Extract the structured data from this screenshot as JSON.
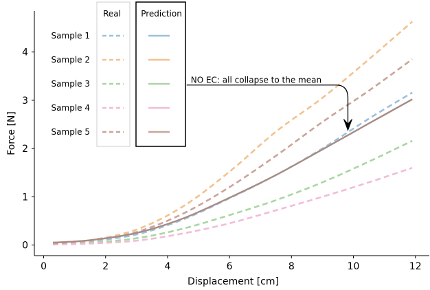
{
  "chart_data": {
    "type": "line",
    "xlabel": "Displacement [cm]",
    "ylabel": "Force [N]",
    "xlim": [
      -0.3,
      12.45
    ],
    "ylim": [
      -0.22,
      4.85
    ],
    "xticks": [
      0,
      2,
      4,
      6,
      8,
      10,
      12
    ],
    "yticks": [
      0,
      1,
      2,
      3,
      4
    ],
    "grid": false,
    "annotation": {
      "text": "NO EC: all collapse to the mean",
      "xy": [
        9.8,
        2.38
      ],
      "xytext": [
        4.75,
        3.33
      ]
    },
    "legend_real_title": "Real",
    "legend_pred_title": "Prediction",
    "samples": [
      "Sample 1",
      "Sample 2",
      "Sample 3",
      "Sample 4",
      "Sample 5"
    ],
    "colors": [
      "#9cc0de",
      "#f2c28f",
      "#a9d6a2",
      "#f1bcd8",
      "#caa49a"
    ],
    "real_series": [
      {
        "name": "Sample 1",
        "x": [
          0.3,
          1.5,
          3.0,
          4.5,
          6.0,
          7.5,
          9.0,
          10.5,
          11.9
        ],
        "y": [
          0.03,
          0.08,
          0.22,
          0.53,
          0.97,
          1.45,
          2.0,
          2.62,
          3.16
        ]
      },
      {
        "name": "Sample 2",
        "x": [
          0.3,
          1.5,
          3.0,
          4.5,
          6.0,
          7.5,
          9.0,
          10.5,
          11.9
        ],
        "y": [
          0.03,
          0.1,
          0.32,
          0.8,
          1.52,
          2.35,
          3.05,
          3.85,
          4.63
        ]
      },
      {
        "name": "Sample 3",
        "x": [
          0.3,
          1.5,
          3.0,
          4.5,
          6.0,
          7.5,
          9.0,
          10.5,
          11.9
        ],
        "y": [
          0.02,
          0.05,
          0.14,
          0.34,
          0.62,
          0.93,
          1.3,
          1.73,
          2.16
        ]
      },
      {
        "name": "Sample 4",
        "x": [
          0.3,
          1.5,
          3.0,
          4.5,
          6.0,
          7.5,
          9.0,
          10.5,
          11.9
        ],
        "y": [
          0.01,
          0.03,
          0.09,
          0.24,
          0.45,
          0.72,
          1.0,
          1.3,
          1.6
        ]
      },
      {
        "name": "Sample 5",
        "x": [
          0.3,
          1.5,
          3.0,
          4.5,
          6.0,
          7.5,
          9.0,
          10.5,
          11.9
        ],
        "y": [
          0.03,
          0.09,
          0.27,
          0.65,
          1.2,
          1.85,
          2.55,
          3.2,
          3.85
        ]
      }
    ],
    "prediction_series": [
      {
        "name": "Sample 1",
        "x": [
          0.3,
          1.5,
          3.0,
          4.5,
          6.0,
          7.5,
          9.0,
          10.5,
          11.9
        ],
        "y": [
          0.05,
          0.1,
          0.25,
          0.55,
          0.98,
          1.45,
          1.98,
          2.52,
          3.02
        ]
      },
      {
        "name": "Sample 2",
        "x": [
          0.3,
          1.5,
          3.0,
          4.5,
          6.0,
          7.5,
          9.0,
          10.5,
          11.9
        ],
        "y": [
          0.05,
          0.1,
          0.25,
          0.55,
          0.98,
          1.45,
          1.98,
          2.52,
          3.02
        ]
      },
      {
        "name": "Sample 3",
        "x": [
          0.3,
          1.5,
          3.0,
          4.5,
          6.0,
          7.5,
          9.0,
          10.5,
          11.9
        ],
        "y": [
          0.05,
          0.1,
          0.25,
          0.55,
          0.98,
          1.45,
          1.98,
          2.52,
          3.02
        ]
      },
      {
        "name": "Sample 4",
        "x": [
          0.3,
          1.5,
          3.0,
          4.5,
          6.0,
          7.5,
          9.0,
          10.5,
          11.9
        ],
        "y": [
          0.05,
          0.1,
          0.25,
          0.55,
          0.98,
          1.45,
          1.98,
          2.52,
          3.02
        ]
      },
      {
        "name": "Sample 5",
        "x": [
          0.3,
          1.5,
          3.0,
          4.5,
          6.0,
          7.5,
          9.0,
          10.5,
          11.9
        ],
        "y": [
          0.05,
          0.1,
          0.25,
          0.55,
          0.98,
          1.45,
          1.98,
          2.52,
          3.02
        ]
      }
    ]
  }
}
